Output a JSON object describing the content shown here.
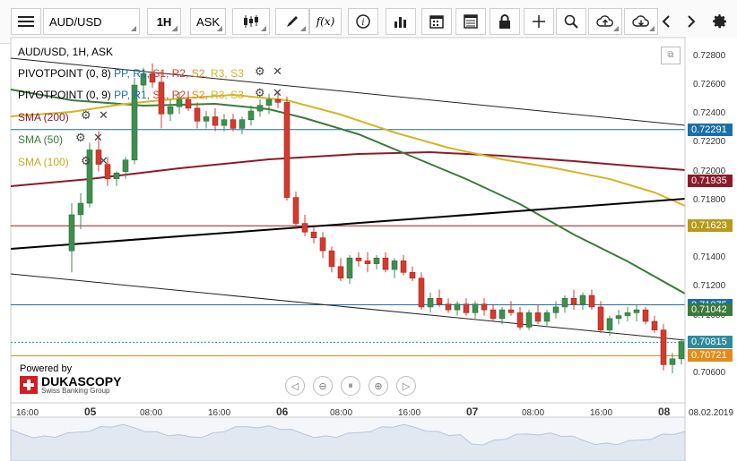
{
  "toolbar": {
    "instrument": "AUD/USD",
    "period": "1H",
    "side": "ASK",
    "icons": [
      "menu-icon",
      "candlestick-icon",
      "pencil-icon",
      "function-icon",
      "info-icon",
      "bar-chart-icon",
      "calendar-icon",
      "table-icon",
      "lock-icon",
      "crosshair-icon",
      "zoom-icon",
      "cloud-upload-icon",
      "cloud-download-icon",
      "chevron-left-icon",
      "chevron-right-icon",
      "gear-icon"
    ],
    "fx_label": "f(x)"
  },
  "legend": {
    "title": "AUD/USD, 1H, ASK",
    "pivot1_name": "PIVOTPOINT (0, 8)",
    "pivot2_name": "PIVOTPOINT (0, 9)",
    "pivot_levels": [
      "PP",
      "R1",
      "S1",
      "R2",
      "S2",
      "R3",
      "S3"
    ],
    "sma200": "SMA (200)",
    "sma50": "SMA (50)",
    "sma100": "SMA (100)"
  },
  "branding": {
    "powered_by": "Powered by",
    "company": "DUKASCOPY",
    "tagline": "Swiss Banking Group"
  },
  "colors": {
    "sma200": "#8b1a2b",
    "sma50": "#3b7a3b",
    "sma100": "#d4b52a",
    "bull": "#3d8f4f",
    "bear": "#d43a2f",
    "pivot_blue": "#1a6fa8",
    "pivot_red_line": "#a01515",
    "price_tag_current": "#2e8b9e",
    "price_tag_last": "#e28b1a"
  },
  "chart_data": {
    "type": "candlestick",
    "title": "AUD/USD, 1H, ASK",
    "ylim": [
      0.7055,
      0.7288
    ],
    "y_ticks": [
      "0.72800",
      "0.72600",
      "0.72400",
      "0.72200",
      "0.72000",
      "0.71800",
      "0.71600",
      "0.71400",
      "0.71200",
      "0.71000",
      "0.70800",
      "0.70600"
    ],
    "x_ticks": [
      {
        "label": "16:00",
        "day": false
      },
      {
        "label": "05",
        "day": true
      },
      {
        "label": "08:00",
        "day": false
      },
      {
        "label": "16:00",
        "day": false
      },
      {
        "label": "06",
        "day": true
      },
      {
        "label": "08:00",
        "day": false
      },
      {
        "label": "16:00",
        "day": false
      },
      {
        "label": "07",
        "day": true
      },
      {
        "label": "08:00",
        "day": false
      },
      {
        "label": "16:00",
        "day": false
      },
      {
        "label": "08",
        "day": true
      }
    ],
    "date_label": "08.02.2019",
    "price_tags": [
      {
        "label": "0.72291",
        "value": 0.72291,
        "color": "#1a6fa8"
      },
      {
        "label": "0.71935",
        "value": 0.71935,
        "color": "#8b1a2b"
      },
      {
        "label": "0.71623",
        "value": 0.71623,
        "color": "#b89a1a"
      },
      {
        "label": "0.71075",
        "value": 0.71075,
        "color": "#1a6fa8"
      },
      {
        "label": "0.71042",
        "value": 0.71042,
        "color": "#3b7a3b"
      },
      {
        "label": "0.70815",
        "value": 0.70815,
        "color": "#2e8b9e"
      },
      {
        "label": "0.70721",
        "value": 0.70721,
        "color": "#e28b1a"
      }
    ],
    "candles": [
      [
        0.7145,
        0.7178,
        0.713,
        0.717
      ],
      [
        0.717,
        0.7185,
        0.716,
        0.7178
      ],
      [
        0.7178,
        0.722,
        0.7175,
        0.7215
      ],
      [
        0.7215,
        0.7228,
        0.72,
        0.7205
      ],
      [
        0.7205,
        0.721,
        0.719,
        0.7195
      ],
      [
        0.7195,
        0.72,
        0.719,
        0.7199
      ],
      [
        0.72,
        0.721,
        0.7195,
        0.7208
      ],
      [
        0.7208,
        0.7265,
        0.7205,
        0.726
      ],
      [
        0.726,
        0.7272,
        0.7255,
        0.7268
      ],
      [
        0.7268,
        0.7275,
        0.7258,
        0.7262
      ],
      [
        0.7262,
        0.727,
        0.723,
        0.724
      ],
      [
        0.724,
        0.725,
        0.7235,
        0.7245
      ],
      [
        0.7245,
        0.7255,
        0.724,
        0.725
      ],
      [
        0.725,
        0.7256,
        0.7242,
        0.7244
      ],
      [
        0.7244,
        0.7248,
        0.723,
        0.7235
      ],
      [
        0.7235,
        0.7242,
        0.723,
        0.7238
      ],
      [
        0.7238,
        0.7244,
        0.7228,
        0.7232
      ],
      [
        0.7232,
        0.724,
        0.7228,
        0.7236
      ],
      [
        0.7236,
        0.724,
        0.7228,
        0.723
      ],
      [
        0.723,
        0.7238,
        0.7226,
        0.7236
      ],
      [
        0.7236,
        0.7246,
        0.7232,
        0.7242
      ],
      [
        0.7242,
        0.725,
        0.7238,
        0.7246
      ],
      [
        0.7246,
        0.7254,
        0.724,
        0.725
      ],
      [
        0.725,
        0.7256,
        0.7244,
        0.7248
      ],
      [
        0.7248,
        0.7252,
        0.718,
        0.7182
      ],
      [
        0.7182,
        0.7186,
        0.716,
        0.7164
      ],
      [
        0.7164,
        0.717,
        0.7155,
        0.7158
      ],
      [
        0.7158,
        0.7162,
        0.715,
        0.7154
      ],
      [
        0.7154,
        0.7158,
        0.714,
        0.7145
      ],
      [
        0.7145,
        0.7148,
        0.713,
        0.7134
      ],
      [
        0.7134,
        0.714,
        0.7124,
        0.7126
      ],
      [
        0.7126,
        0.7142,
        0.7122,
        0.714
      ],
      [
        0.714,
        0.7144,
        0.7134,
        0.7138
      ],
      [
        0.7138,
        0.7144,
        0.713,
        0.7136
      ],
      [
        0.7136,
        0.7142,
        0.7132,
        0.714
      ],
      [
        0.714,
        0.7144,
        0.713,
        0.7132
      ],
      [
        0.7132,
        0.714,
        0.7126,
        0.7138
      ],
      [
        0.7138,
        0.7142,
        0.7128,
        0.713
      ],
      [
        0.713,
        0.7134,
        0.7124,
        0.7126
      ],
      [
        0.7126,
        0.713,
        0.7104,
        0.7106
      ],
      [
        0.7106,
        0.7116,
        0.7102,
        0.7112
      ],
      [
        0.7112,
        0.7118,
        0.7106,
        0.7108
      ],
      [
        0.7108,
        0.7112,
        0.7102,
        0.7104
      ],
      [
        0.7104,
        0.711,
        0.71,
        0.7108
      ],
      [
        0.7108,
        0.7112,
        0.71,
        0.7102
      ],
      [
        0.7102,
        0.711,
        0.7098,
        0.7108
      ],
      [
        0.7108,
        0.7112,
        0.71,
        0.7104
      ],
      [
        0.7104,
        0.7108,
        0.7096,
        0.7098
      ],
      [
        0.7098,
        0.7106,
        0.7094,
        0.7104
      ],
      [
        0.7104,
        0.711,
        0.71,
        0.7102
      ],
      [
        0.7102,
        0.7106,
        0.709,
        0.7092
      ],
      [
        0.7092,
        0.7104,
        0.709,
        0.7102
      ],
      [
        0.7102,
        0.7108,
        0.7094,
        0.7096
      ],
      [
        0.7096,
        0.7104,
        0.7092,
        0.7102
      ],
      [
        0.7102,
        0.711,
        0.7098,
        0.7106
      ],
      [
        0.7106,
        0.7114,
        0.7102,
        0.7112
      ],
      [
        0.7112,
        0.7118,
        0.7104,
        0.7108
      ],
      [
        0.7108,
        0.7116,
        0.7104,
        0.7114
      ],
      [
        0.7114,
        0.7118,
        0.7104,
        0.7106
      ],
      [
        0.7106,
        0.711,
        0.7088,
        0.709
      ],
      [
        0.709,
        0.71,
        0.7086,
        0.7098
      ],
      [
        0.7098,
        0.7104,
        0.7094,
        0.71
      ],
      [
        0.71,
        0.7106,
        0.7096,
        0.7102
      ],
      [
        0.7102,
        0.7108,
        0.7096,
        0.7104
      ],
      [
        0.7104,
        0.7106,
        0.7094,
        0.7096
      ],
      [
        0.7096,
        0.71,
        0.7088,
        0.709
      ],
      [
        0.709,
        0.7094,
        0.7062,
        0.7066
      ],
      [
        0.7066,
        0.7074,
        0.706,
        0.707
      ],
      [
        0.707,
        0.7084,
        0.7066,
        0.7082
      ]
    ]
  }
}
